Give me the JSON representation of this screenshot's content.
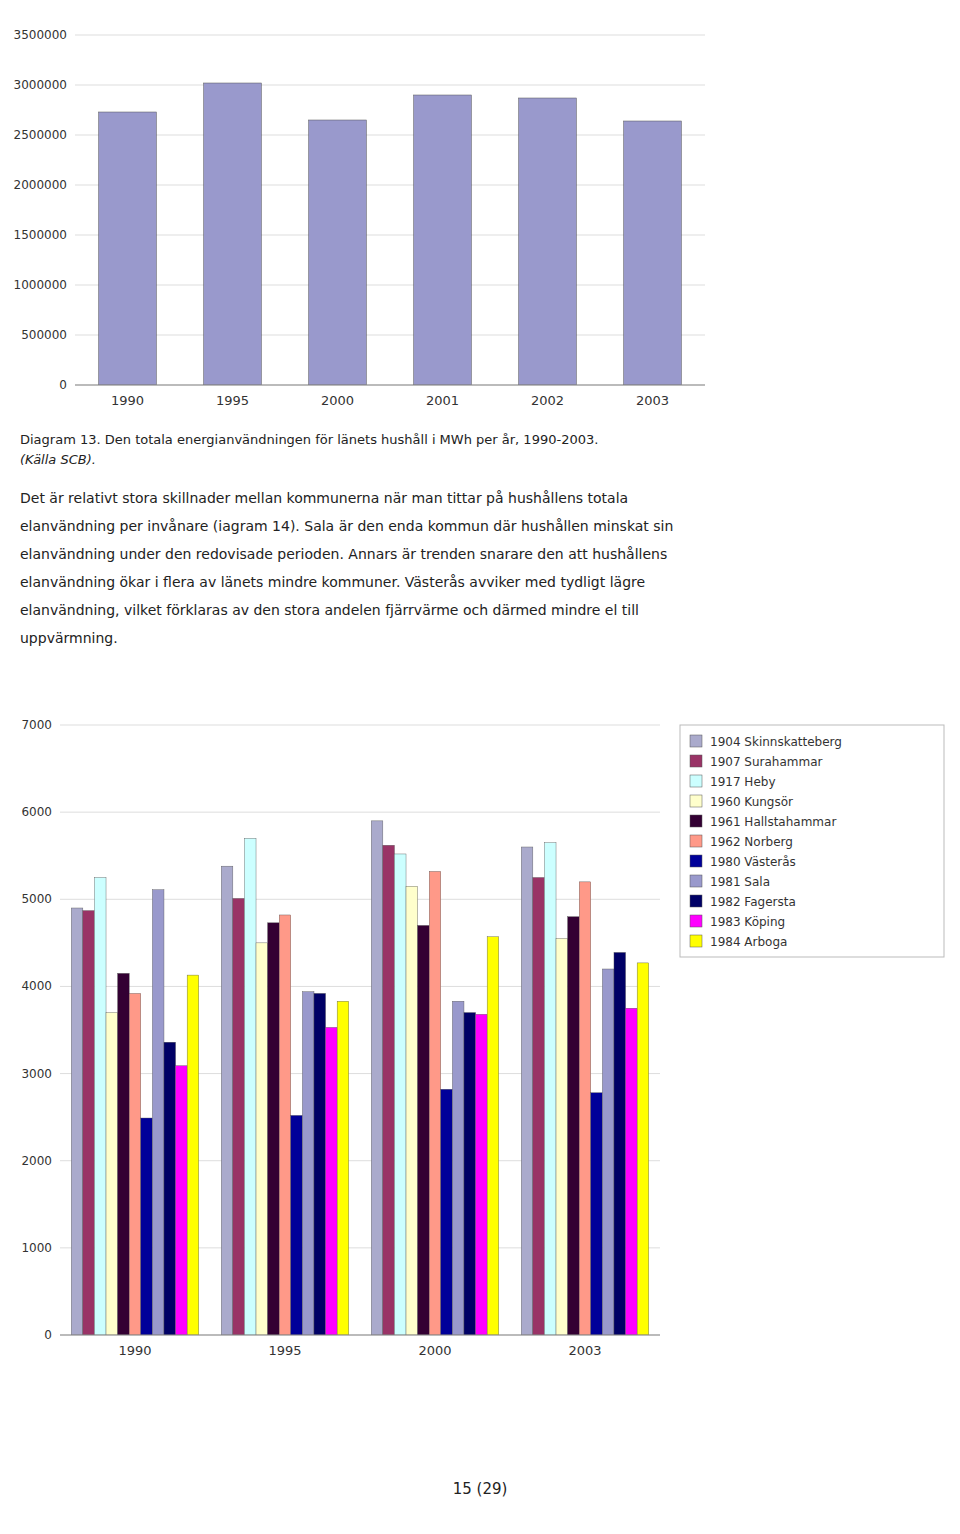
{
  "chart_data": [
    {
      "type": "bar",
      "categories": [
        "1990",
        "1995",
        "2000",
        "2001",
        "2002",
        "2003"
      ],
      "values": [
        2730000,
        3020000,
        2650000,
        2900000,
        2870000,
        2640000
      ],
      "color": "#9999CC",
      "ylim": [
        0,
        3500000
      ],
      "yticks": [
        0,
        500000,
        1000000,
        1500000,
        2000000,
        2500000,
        3000000,
        3500000
      ],
      "grid": true
    },
    {
      "type": "bar",
      "categories": [
        "1990",
        "1995",
        "2000",
        "2003"
      ],
      "series": [
        {
          "name": "1904 Skinnskatteberg",
          "color": "#AAAACC",
          "values": [
            4900,
            5380,
            5900,
            5600
          ]
        },
        {
          "name": "1907 Surahammar",
          "color": "#993366",
          "values": [
            4870,
            5010,
            5620,
            5250
          ]
        },
        {
          "name": "1917 Heby",
          "color": "#CCFFFF",
          "values": [
            5250,
            5700,
            5520,
            5650
          ]
        },
        {
          "name": "1960 Kungsör",
          "color": "#FFFFCC",
          "values": [
            3700,
            4500,
            5150,
            4550
          ]
        },
        {
          "name": "1961 Hallstahammar",
          "color": "#330033",
          "values": [
            4150,
            4730,
            4700,
            4800
          ]
        },
        {
          "name": "1962 Norberg",
          "color": "#FF9988",
          "values": [
            3920,
            4820,
            5320,
            5200
          ]
        },
        {
          "name": "1980 Västerås",
          "color": "#000099",
          "values": [
            2490,
            2520,
            2820,
            2780
          ]
        },
        {
          "name": "1981 Sala",
          "color": "#9999CC",
          "values": [
            5110,
            3940,
            3830,
            4200
          ]
        },
        {
          "name": "1982 Fagersta",
          "color": "#000066",
          "values": [
            3360,
            3920,
            3700,
            4390
          ]
        },
        {
          "name": "1983 Köping",
          "color": "#FF00FF",
          "values": [
            3090,
            3530,
            3680,
            3750
          ]
        },
        {
          "name": "1984 Arboga",
          "color": "#FFFF00",
          "values": [
            4130,
            3830,
            4570,
            4270
          ]
        }
      ],
      "ylim": [
        0,
        7000
      ],
      "yticks": [
        0,
        1000,
        2000,
        3000,
        4000,
        5000,
        6000,
        7000
      ],
      "grid": true,
      "legend": "right"
    }
  ],
  "caption_lines": [
    "Diagram 13. Den totala energianvändningen för länets hushåll i MWh per år, 1990-2003.",
    "(Källa SCB)."
  ],
  "body_lines": [
    "Det är relativt stora skillnader mellan kommunerna när man tittar på hushållens totala",
    "elanvändning per invånare (­i­agram 14). Sala är den enda kommun där hushållen minskat sin",
    "elanvändning under den redovisade perioden. Annars är trenden snarare den att hushållens",
    "elanvändning ökar i flera av länets mindre kommuner. Västerås avviker med tydligt lägre",
    "elanvändning, vilket förklaras av den stora andelen fjärrvärme och därmed mindre el till",
    "uppvärmning."
  ],
  "footer": "15 (29)"
}
